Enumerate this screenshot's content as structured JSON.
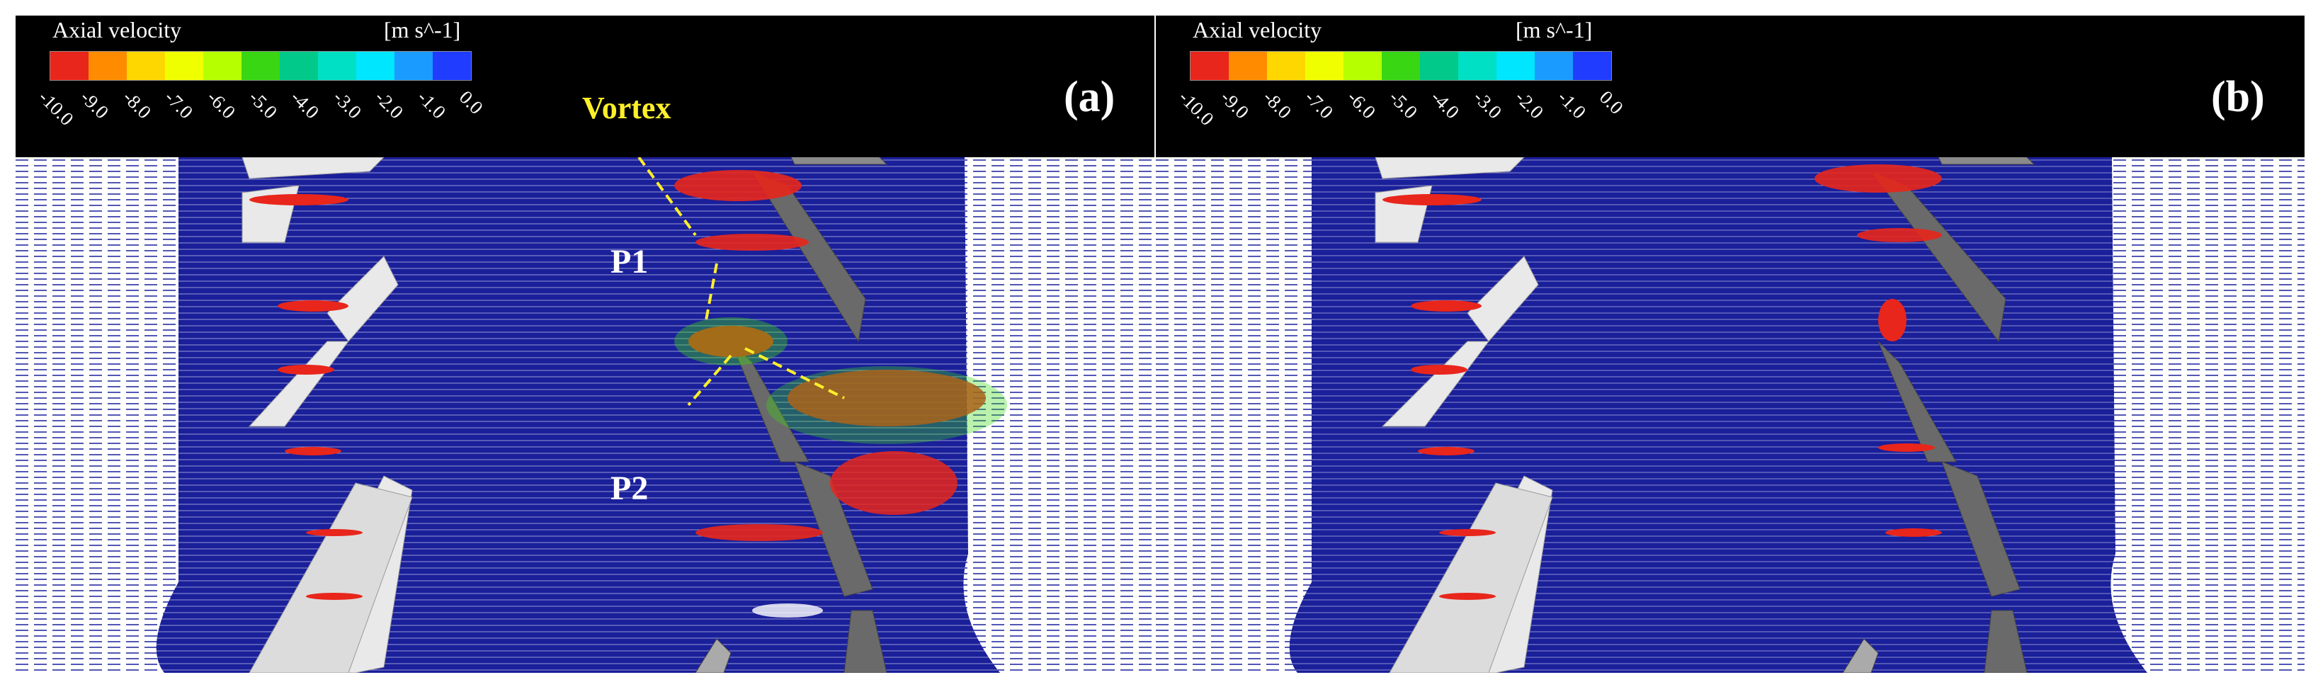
{
  "colorbar": {
    "title": "Axial velocity",
    "units": "[m s^-1]",
    "ticks": [
      "-10.0",
      "-9.0",
      "-8.0",
      "-7.0",
      "-6.0",
      "-5.0",
      "-4.0",
      "-3.0",
      "-2.0",
      "-1.0",
      "0.0"
    ],
    "colors": [
      "#e8261b",
      "#ff8c00",
      "#ffd700",
      "#f0ff00",
      "#b6ff00",
      "#39d614",
      "#00c98a",
      "#00e0c4",
      "#00e6ff",
      "#1a9bff",
      "#1f3cff"
    ]
  },
  "panels": [
    {
      "label": "(a)",
      "annotations": [
        "Vortex",
        "P1",
        "P2"
      ]
    },
    {
      "label": "(b)",
      "annotations": []
    }
  ],
  "colors": {
    "background": "#000000",
    "flow": "#1a1f9a",
    "streamline": "#ffffff",
    "blade_light": "#e9e9e9",
    "blade_dark": "#6a6a6a",
    "annotation": "#ffef2a"
  }
}
